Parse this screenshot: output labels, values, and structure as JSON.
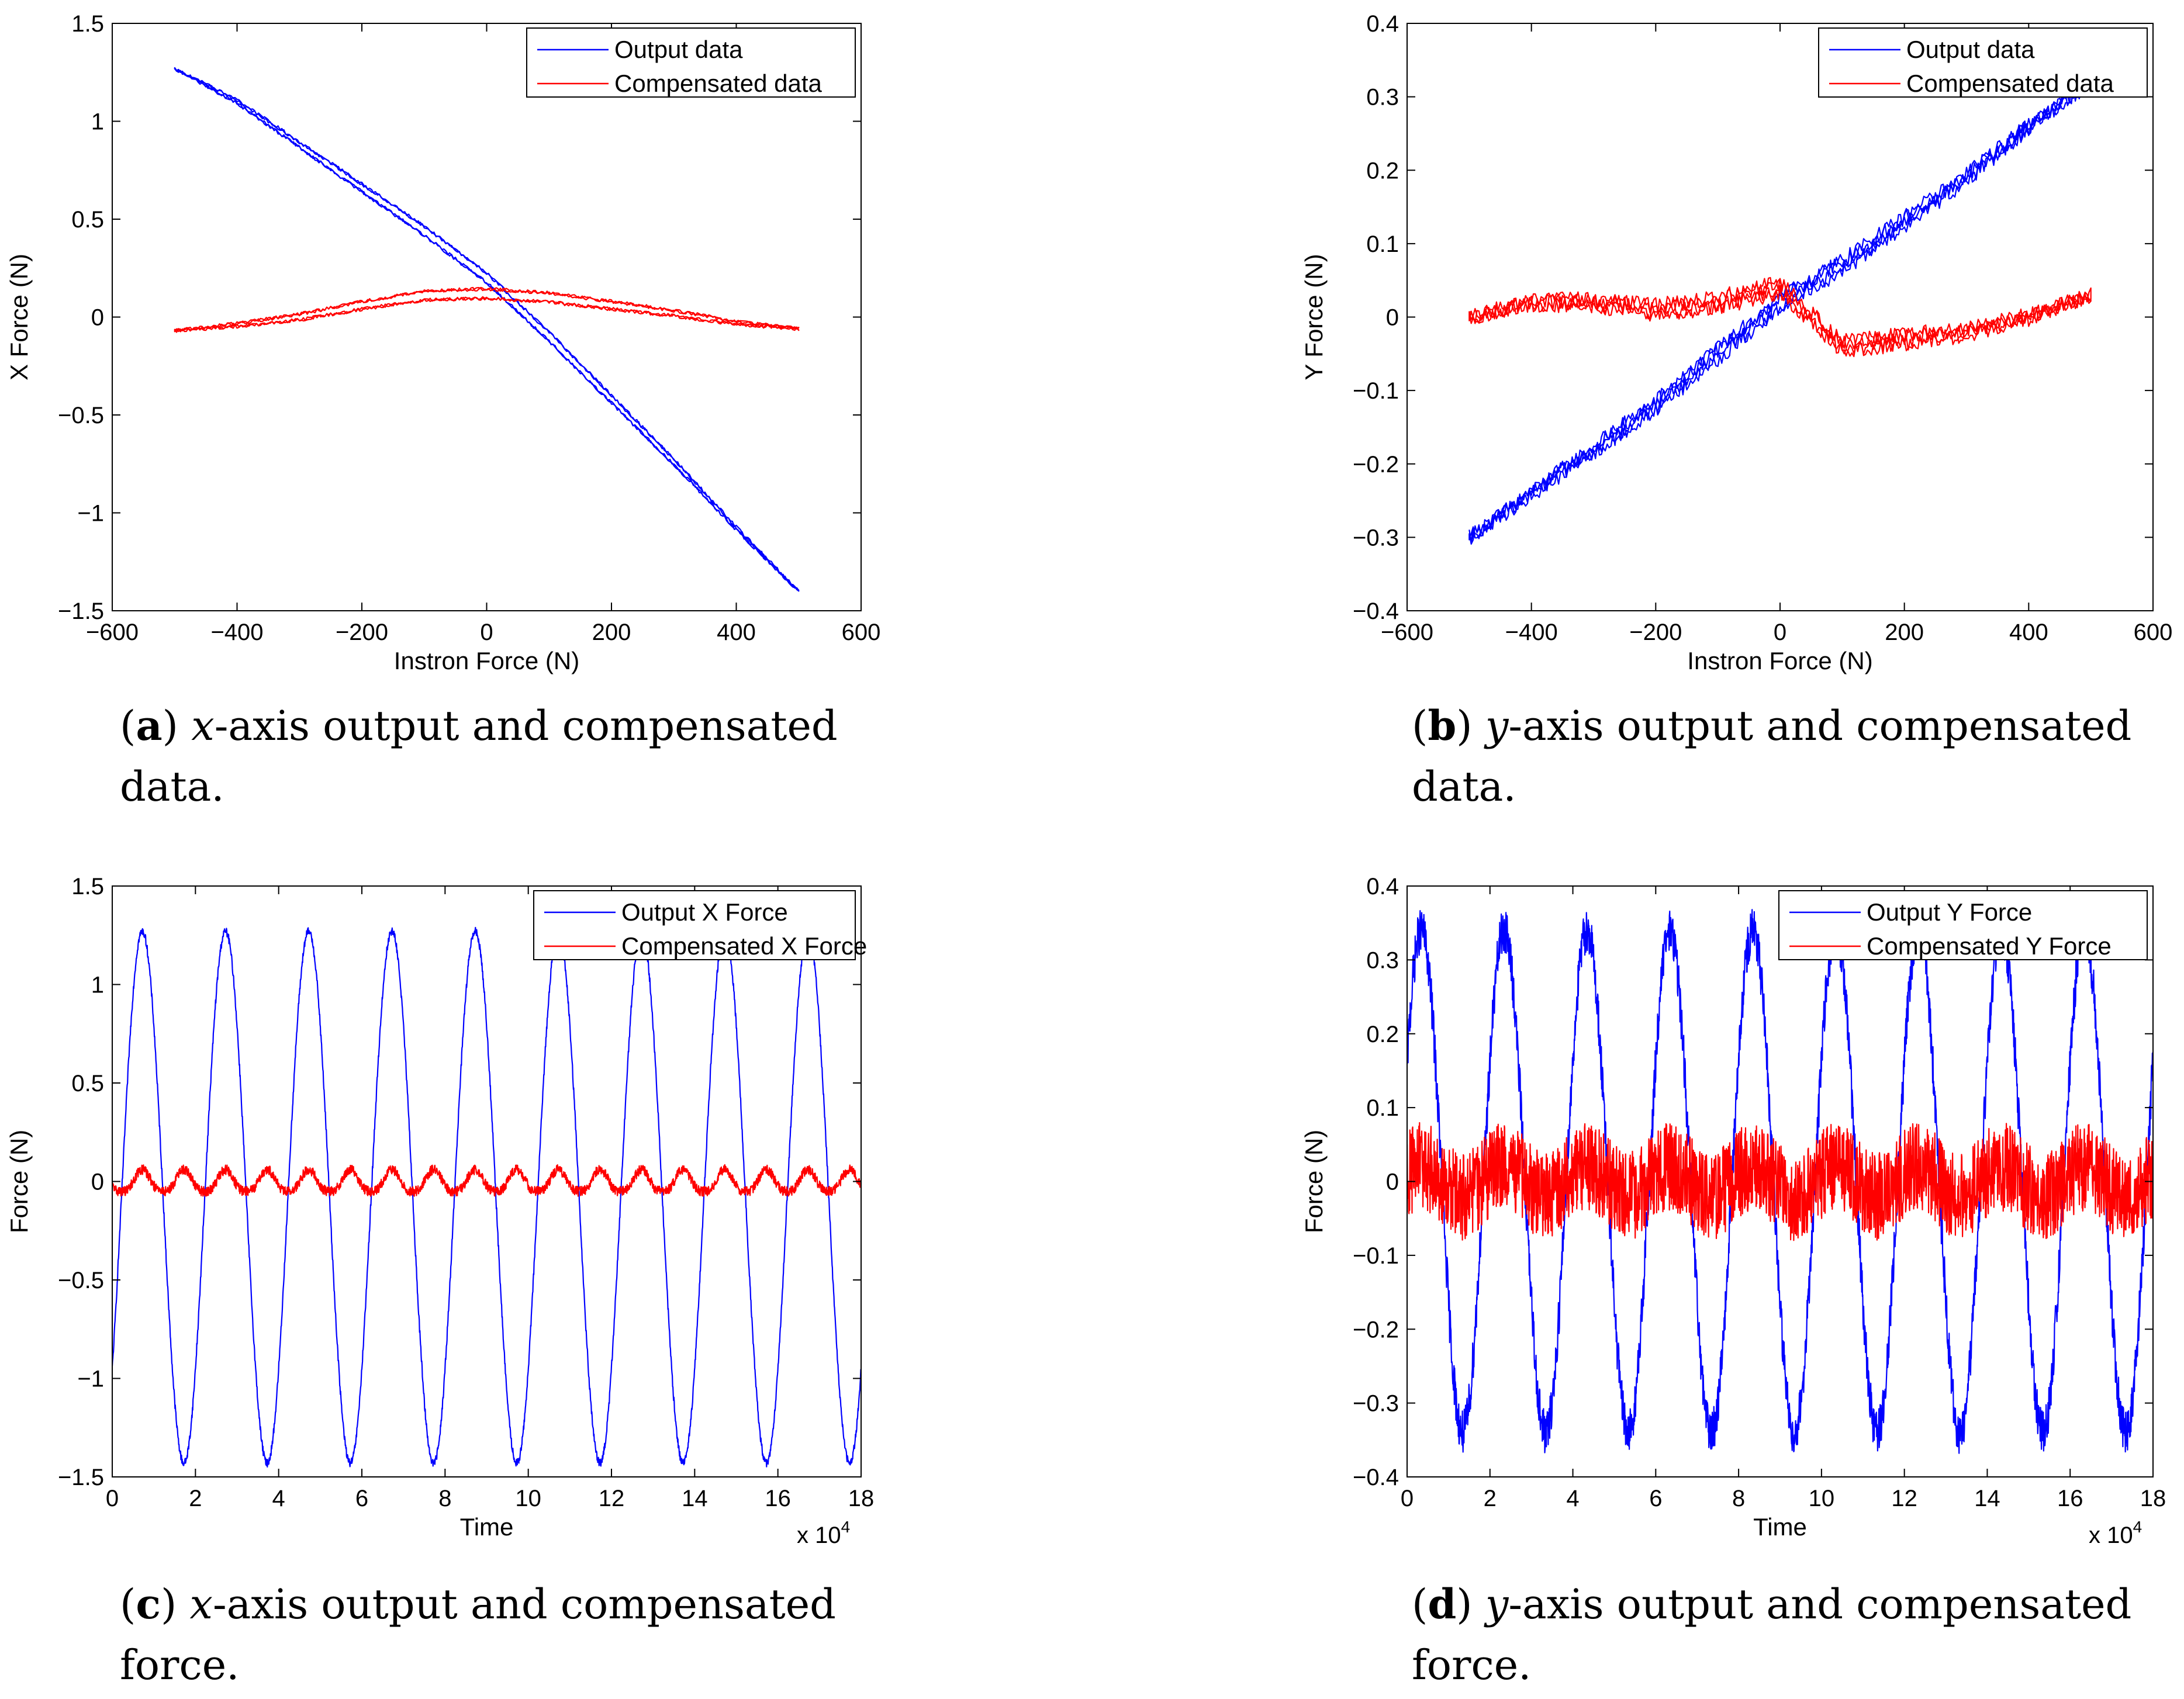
{
  "figure": {
    "captions": [
      {
        "letter": "a",
        "var": "x",
        "rest": "-axis output and compensated",
        "line2": "data."
      },
      {
        "letter": "b",
        "var": "y",
        "rest": "-axis output and compensated",
        "line2": "data."
      },
      {
        "letter": "c",
        "var": "x",
        "rest": "-axis output and compensated",
        "line2": "force."
      },
      {
        "letter": "d",
        "var": "y",
        "rest": "-axis output and compensated",
        "line2": "force."
      }
    ]
  },
  "colors": {
    "blue": "#0000ff",
    "red": "#ff0000"
  },
  "chart_data": [
    {
      "type": "line",
      "kind": "hysteresis",
      "xlabel": "Instron Force (N)",
      "ylabel": "X Force (N)",
      "xlim": [
        -600,
        600
      ],
      "ylim": [
        -1.5,
        1.5
      ],
      "xticks": [
        "−600",
        "−400",
        "−200",
        "0",
        "200",
        "400",
        "600"
      ],
      "yticks": [
        "−1.5",
        "−1",
        "−0.5",
        "0",
        "0.5",
        "1",
        "1.5"
      ],
      "legend": [
        "Output data",
        "Compensated data"
      ],
      "legend_position": "top-right",
      "series": [
        {
          "name": "Output data",
          "color": "#0000ff",
          "x": [
            -500,
            -400,
            -300,
            -200,
            -100,
            0,
            100,
            200,
            300,
            400,
            500
          ],
          "y": [
            1.27,
            1.1,
            0.88,
            0.66,
            0.44,
            0.2,
            -0.1,
            -0.42,
            -0.74,
            -1.08,
            -1.4
          ]
        },
        {
          "name": "Compensated data",
          "color": "#ff0000",
          "x": [
            -500,
            -400,
            -300,
            -200,
            -100,
            0,
            100,
            200,
            300,
            400,
            500
          ],
          "y": [
            -0.07,
            -0.04,
            0.0,
            0.06,
            0.11,
            0.12,
            0.1,
            0.06,
            0.02,
            -0.03,
            -0.06
          ]
        }
      ]
    },
    {
      "type": "line",
      "kind": "hysteresis",
      "xlabel": "Instron Force (N)",
      "ylabel": "Y Force (N)",
      "xlim": [
        -600,
        600
      ],
      "ylim": [
        -0.4,
        0.4
      ],
      "xticks": [
        "−600",
        "−400",
        "−200",
        "0",
        "200",
        "400",
        "600"
      ],
      "yticks": [
        "−0.4",
        "−0.3",
        "−0.2",
        "−0.1",
        "0",
        "0.1",
        "0.2",
        "0.3",
        "0.4"
      ],
      "legend": [
        "Output data",
        "Compensated data"
      ],
      "legend_position": "top-right",
      "series": [
        {
          "name": "Output data",
          "color": "#0000ff",
          "x": [
            -500,
            -400,
            -300,
            -200,
            -100,
            0,
            100,
            200,
            300,
            400,
            500
          ],
          "y": [
            -0.3,
            -0.24,
            -0.18,
            -0.12,
            -0.05,
            0.02,
            0.07,
            0.13,
            0.19,
            0.26,
            0.32
          ]
        },
        {
          "name": "Compensated data",
          "color": "#ff0000",
          "x": [
            -500,
            -400,
            -300,
            -200,
            -100,
            0,
            100,
            200,
            300,
            400,
            500
          ],
          "y": [
            0.0,
            0.02,
            0.02,
            0.01,
            0.02,
            0.04,
            -0.04,
            -0.03,
            -0.02,
            0.0,
            0.03
          ]
        }
      ]
    },
    {
      "type": "line",
      "kind": "timeseries",
      "xlabel": "Time",
      "ylabel": "Force (N)",
      "xlim": [
        0,
        18
      ],
      "ylim": [
        -1.5,
        1.5
      ],
      "xticks": [
        "0",
        "2",
        "4",
        "6",
        "8",
        "10",
        "12",
        "14",
        "16",
        "18"
      ],
      "yticks": [
        "−1.5",
        "−1",
        "−0.5",
        "0",
        "0.5",
        "1",
        "1.5"
      ],
      "x_multiplier": "x 10",
      "x_multiplier_exp": "4",
      "legend": [
        "Output X Force",
        "Compensated X Force"
      ],
      "legend_position": "top-right",
      "period": 2,
      "series": [
        {
          "name": "Output X Force",
          "color": "#0000ff",
          "amplitude": 1.35,
          "offset": -0.08,
          "phase": -0.7,
          "noise": 0.02
        },
        {
          "name": "Compensated X Force",
          "color": "#ff0000",
          "amplitude": 0.11,
          "offset": 0.02,
          "phase": -0.7,
          "noise": 0.025
        }
      ]
    },
    {
      "type": "line",
      "kind": "timeseries",
      "xlabel": "Time",
      "ylabel": "Force (N)",
      "xlim": [
        0,
        18
      ],
      "ylim": [
        -0.4,
        0.4
      ],
      "xticks": [
        "0",
        "2",
        "4",
        "6",
        "8",
        "10",
        "12",
        "14",
        "16",
        "18"
      ],
      "yticks": [
        "−0.4",
        "−0.3",
        "−0.2",
        "−0.1",
        "0",
        "0.1",
        "0.2",
        "0.3",
        "0.4"
      ],
      "x_multiplier": "x 10",
      "x_multiplier_exp": "4",
      "legend": [
        "Output Y Force",
        "Compensated Y Force"
      ],
      "legend_position": "top-right",
      "period": 2,
      "series": [
        {
          "name": "Output Y Force",
          "color": "#0000ff",
          "amplitude": 0.34,
          "offset": 0.0,
          "phase": 0.5,
          "noise": 0.03
        },
        {
          "name": "Compensated Y Force",
          "color": "#ff0000",
          "amplitude": 0.02,
          "offset": 0.0,
          "phase": 0.5,
          "noise": 0.06
        }
      ]
    }
  ]
}
